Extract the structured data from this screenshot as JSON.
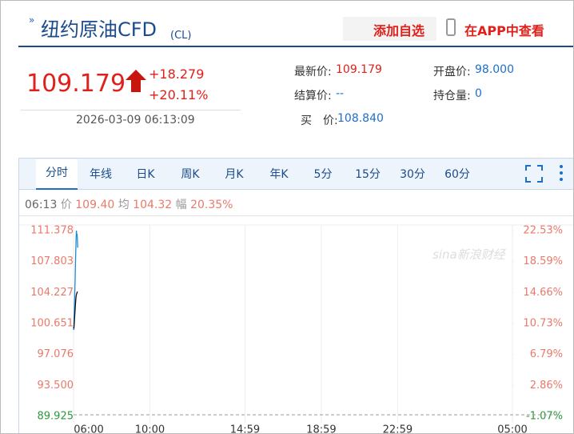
{
  "header": {
    "title": "纽约原油CFD",
    "code": "(CL)",
    "add_button": "添加自选",
    "app_button": "在APP中查看"
  },
  "quote": {
    "price": "109.179",
    "change": "+18.279",
    "change_pct": "+20.11%",
    "time": "2026-03-09 06:13:09"
  },
  "fields": [
    {
      "label": "最新价:",
      "value": "109.179"
    },
    {
      "label": "开盘价:",
      "value": "98.000"
    },
    {
      "label": "结算价:",
      "value": "--"
    },
    {
      "label": "持仓量:",
      "value": "0"
    },
    {
      "label": "买　价:",
      "value": "108.840"
    }
  ],
  "tabs": [
    "分时",
    "年线",
    "日K",
    "周K",
    "月K",
    "年K",
    "5分",
    "15分",
    "30分",
    "60分"
  ],
  "info": {
    "time": "06:13",
    "price_label": "价",
    "price": "109.40",
    "avg_label": "均",
    "avg": "104.32",
    "amp_label": "幅",
    "amp": "20.35%"
  },
  "watermark": "sina新浪财经",
  "chart_data": {
    "type": "line",
    "x": [
      0,
      1,
      2,
      3,
      4,
      5,
      6,
      7,
      8,
      9,
      10,
      11,
      12,
      13
    ],
    "series": [
      {
        "name": "价",
        "color": "#1e8bd3",
        "values": [
          100.2,
          99.9,
          101.5,
          103.0,
          104.5,
          105.8,
          107.5,
          109.0,
          110.5,
          111.378,
          110.8,
          111.0,
          110.5,
          109.4
        ]
      },
      {
        "name": "均",
        "color": "#111111",
        "values": [
          100.2,
          100.1,
          100.6,
          101.2,
          101.8,
          102.3,
          102.9,
          103.4,
          103.8,
          104.0,
          104.1,
          104.2,
          104.3,
          104.32
        ]
      }
    ],
    "xlim": [
      0,
      1380
    ],
    "xticks": [
      {
        "value": 0,
        "label": "06:00"
      },
      {
        "value": 240,
        "label": "10:00"
      },
      {
        "value": 539,
        "label": "14:59"
      },
      {
        "value": 779,
        "label": "18:59"
      },
      {
        "value": 1019,
        "label": "22:59"
      },
      {
        "value": 1380,
        "label": "05:00"
      }
    ],
    "ylim": [
      89.925,
      111.378
    ],
    "yticks": [
      89.925,
      {
        "value": 93.5,
        "label": "93.500"
      },
      97.076,
      100.651,
      104.227,
      107.803,
      111.378
    ],
    "y2lim": [
      -1.07,
      22.53
    ],
    "y2ticks": [
      {
        "value": -1.07,
        "label": "-1.07%"
      },
      {
        "value": 2.86,
        "label": "2.86%"
      },
      {
        "value": 6.79,
        "label": "6.79%"
      },
      {
        "value": 10.73,
        "label": "10.73%"
      },
      {
        "value": 14.66,
        "label": "14.66%"
      },
      {
        "value": 18.59,
        "label": "18.59%"
      },
      {
        "value": 22.53,
        "label": "22.53%"
      }
    ],
    "grid": true
  }
}
